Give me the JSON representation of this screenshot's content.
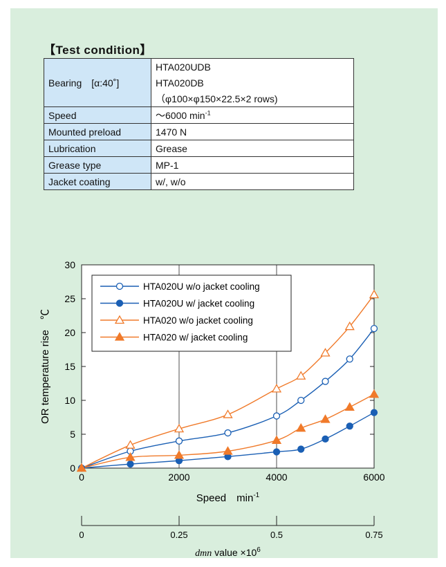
{
  "test_condition": {
    "title": "【Test condition】",
    "bearing_label": "Bearing　[α:40˚]",
    "bearing_values": [
      "HTA020UDB",
      "HTA020DB",
      "（φ100×φ150×22.5×2 rows)"
    ],
    "rows": [
      {
        "label": "Speed",
        "value": "～6000 min",
        "sup": "-1"
      },
      {
        "label": "Mounted preload",
        "value": "1470 N"
      },
      {
        "label": "Lubrication",
        "value": "Grease"
      },
      {
        "label": "Grease type",
        "value": "MP-1"
      },
      {
        "label": "Jacket coating",
        "value": "w/, w/o"
      }
    ]
  },
  "chart_data": {
    "type": "line",
    "ylabel": "OR temperature rise　℃",
    "xlabel": "Speed　min",
    "xlabel_sup": "-1",
    "xlim": [
      0,
      6000
    ],
    "ylim": [
      0,
      30
    ],
    "xticks": [
      0,
      2000,
      4000,
      6000
    ],
    "yticks": [
      0,
      5,
      10,
      15,
      20,
      25,
      30
    ],
    "grid": true,
    "legend_position": "top-left",
    "secondary_axis": {
      "label": "dmn value ×10",
      "label_sup": "6",
      "ticks": [
        "0",
        "0.25",
        "0.5",
        "0.75"
      ],
      "tick_values": [
        0,
        0.25,
        0.5,
        0.75
      ]
    },
    "series": [
      {
        "name": "HTA020U w/o jacket cooling",
        "color": "#1a5fb4",
        "marker": "circle-open",
        "x": [
          0,
          1000,
          2000,
          3000,
          4000,
          4500,
          5000,
          5500,
          6000
        ],
        "y": [
          0,
          2.5,
          4.0,
          5.2,
          7.7,
          10.0,
          12.8,
          16.1,
          20.6
        ]
      },
      {
        "name": "HTA020U w/ jacket cooling",
        "color": "#1a5fb4",
        "marker": "circle-filled",
        "x": [
          0,
          1000,
          2000,
          3000,
          4000,
          4500,
          5000,
          5500,
          6000
        ],
        "y": [
          0,
          0.6,
          1.1,
          1.7,
          2.4,
          2.8,
          4.3,
          6.2,
          8.2
        ]
      },
      {
        "name": "HTA020 w/o jacket cooling",
        "color": "#f07a2a",
        "marker": "triangle-open",
        "x": [
          0,
          1000,
          2000,
          3000,
          4000,
          4500,
          5000,
          5500,
          6000
        ],
        "y": [
          0,
          3.4,
          5.8,
          7.9,
          11.7,
          13.6,
          17.0,
          20.9,
          25.6
        ]
      },
      {
        "name": "HTA020 w/ jacket cooling",
        "color": "#f07a2a",
        "marker": "triangle-filled",
        "x": [
          0,
          1000,
          2000,
          3000,
          4000,
          4500,
          5000,
          5500,
          6000
        ],
        "y": [
          0,
          1.6,
          1.9,
          2.5,
          4.1,
          5.9,
          7.2,
          9.0,
          10.9
        ]
      }
    ]
  }
}
